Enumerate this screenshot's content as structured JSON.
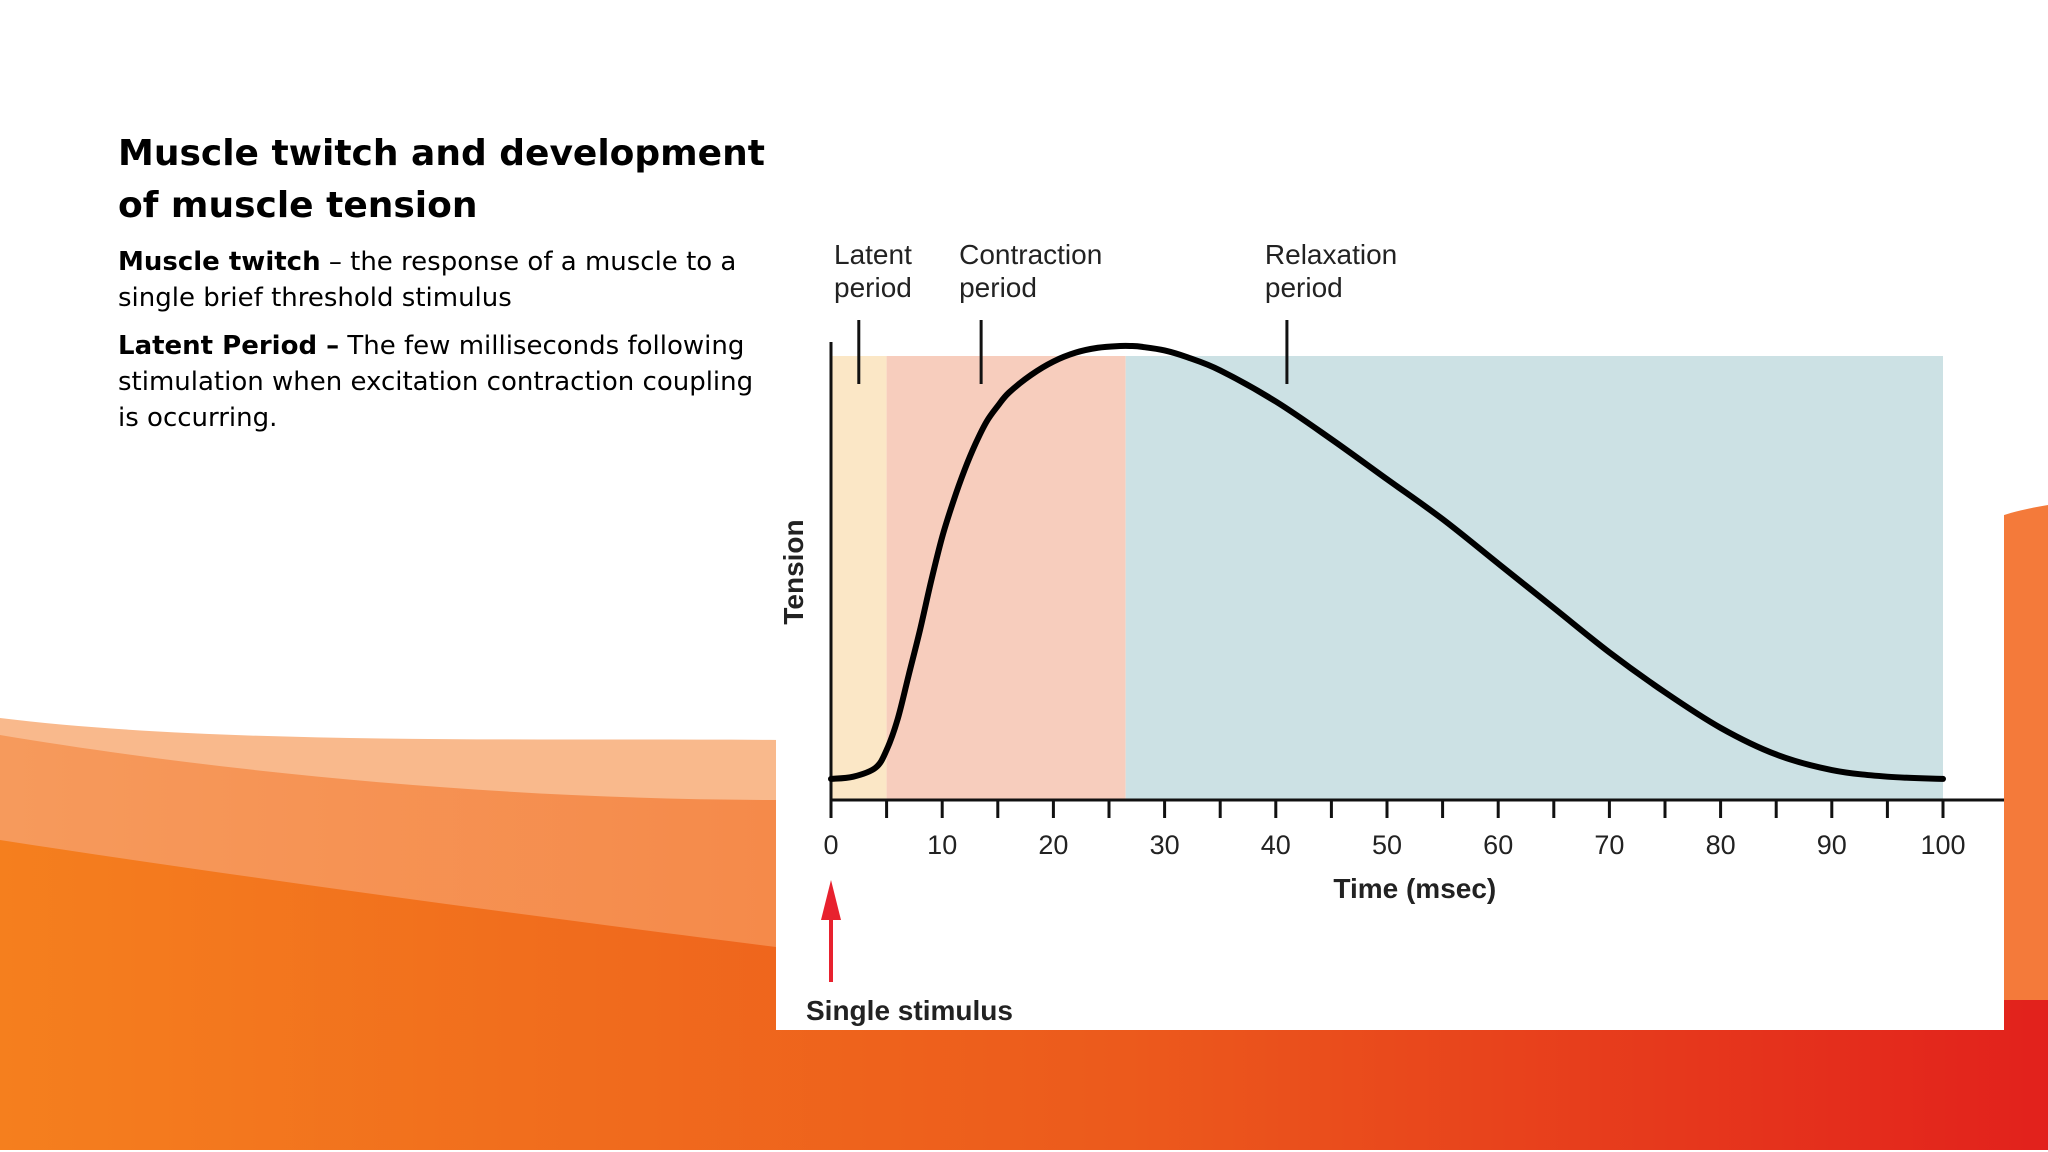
{
  "slide": {
    "title": "Muscle twitch and development of muscle tension",
    "paragraphs": [
      {
        "term": "Muscle twitch",
        "separator": " – ",
        "text": "the response of a muscle to a single brief threshold stimulus"
      },
      {
        "term": "Latent Period –",
        "separator": " ",
        "text": "The few milliseconds following stimulation when excitation contraction coupling is occurring."
      }
    ]
  },
  "theme": {
    "wave_colors": [
      "#F57F1E",
      "#E84E1B",
      "#E2211C",
      "#F7A36A"
    ],
    "latent_color": "#FBE7C6",
    "contraction_color": "#F7CDBD",
    "relaxation_color": "#CCE1E4",
    "stimulus_color": "#E8212E"
  },
  "chart_data": {
    "type": "line",
    "xlabel": "Time (msec)",
    "ylabel": "Tension",
    "xlim": [
      0,
      100
    ],
    "x_ticks": [
      0,
      10,
      20,
      30,
      40,
      50,
      60,
      70,
      80,
      90,
      100
    ],
    "x_minor_ticks": [
      5,
      15,
      25,
      35,
      45,
      55,
      65,
      75,
      85,
      95
    ],
    "ylim": [
      0,
      1
    ],
    "phases": [
      {
        "label_lines": [
          "Latent",
          "period"
        ],
        "start": 0,
        "end": 5,
        "marker_x": 2.5
      },
      {
        "label_lines": [
          "Contraction",
          "period"
        ],
        "start": 5,
        "end": 26.5,
        "marker_x": 13.5
      },
      {
        "label_lines": [
          "Relaxation",
          "period"
        ],
        "start": 26.5,
        "end": 100,
        "marker_x": 41
      }
    ],
    "stimulus": {
      "label": "Single stimulus",
      "x": 0
    },
    "curve": {
      "x": [
        0,
        2,
        4,
        5,
        6,
        7,
        8,
        9,
        10,
        11,
        12,
        13,
        14,
        15,
        16,
        18,
        20,
        22,
        24,
        26,
        27,
        28,
        30,
        32,
        35,
        40,
        45,
        50,
        55,
        60,
        65,
        70,
        75,
        80,
        85,
        90,
        95,
        100
      ],
      "y": [
        0.025,
        0.03,
        0.05,
        0.09,
        0.16,
        0.26,
        0.36,
        0.47,
        0.57,
        0.65,
        0.72,
        0.78,
        0.83,
        0.865,
        0.895,
        0.935,
        0.965,
        0.985,
        0.996,
        1.0,
        1.0,
        0.998,
        0.99,
        0.975,
        0.945,
        0.875,
        0.79,
        0.7,
        0.61,
        0.51,
        0.41,
        0.31,
        0.22,
        0.14,
        0.08,
        0.045,
        0.03,
        0.025
      ]
    }
  }
}
